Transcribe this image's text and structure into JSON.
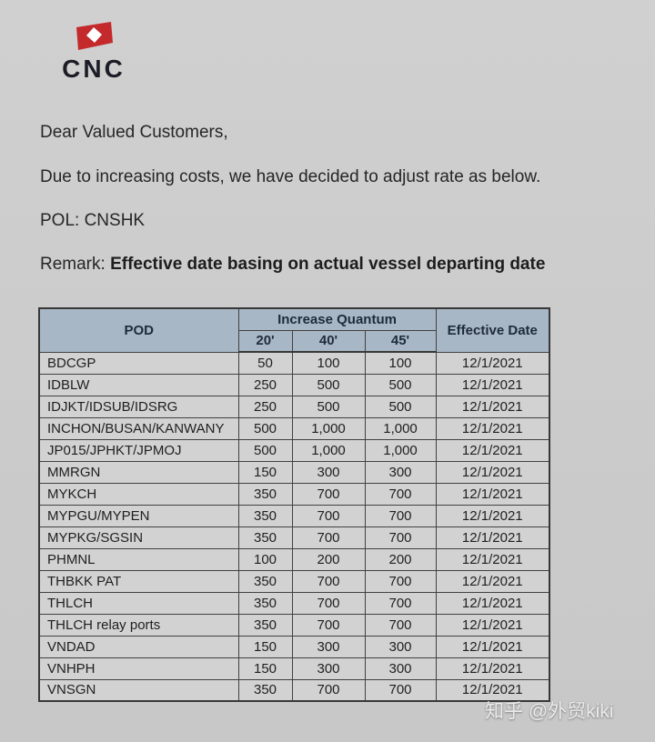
{
  "logo": {
    "text": "CNC",
    "flag_color": "#c4292c",
    "diamond_color": "#ffffff"
  },
  "letter": {
    "greeting": "Dear Valued Customers,",
    "body": "Due to increasing costs, we have decided to adjust rate as below.",
    "pol": "POL: CNSHK",
    "remark_label": "Remark: ",
    "remark_bold": "Effective date basing on actual vessel departing date"
  },
  "table": {
    "headers": {
      "pod": "POD",
      "increase_quantum": "Increase Quantum",
      "sizes": [
        "20'",
        "40'",
        "45'"
      ],
      "effective_date": "Effective Date"
    },
    "rows": [
      {
        "pod": "BDCGP",
        "q20": "50",
        "q40": "100",
        "q45": "100",
        "date": "12/1/2021"
      },
      {
        "pod": "IDBLW",
        "q20": "250",
        "q40": "500",
        "q45": "500",
        "date": "12/1/2021"
      },
      {
        "pod": "IDJKT/IDSUB/IDSRG",
        "q20": "250",
        "q40": "500",
        "q45": "500",
        "date": "12/1/2021"
      },
      {
        "pod": "INCHON/BUSAN/KANWANY",
        "q20": "500",
        "q40": "1,000",
        "q45": "1,000",
        "date": "12/1/2021"
      },
      {
        "pod": "JP015/JPHKT/JPMOJ",
        "q20": "500",
        "q40": "1,000",
        "q45": "1,000",
        "date": "12/1/2021"
      },
      {
        "pod": "MMRGN",
        "q20": "150",
        "q40": "300",
        "q45": "300",
        "date": "12/1/2021"
      },
      {
        "pod": "MYKCH",
        "q20": "350",
        "q40": "700",
        "q45": "700",
        "date": "12/1/2021"
      },
      {
        "pod": "MYPGU/MYPEN",
        "q20": "350",
        "q40": "700",
        "q45": "700",
        "date": "12/1/2021"
      },
      {
        "pod": "MYPKG/SGSIN",
        "q20": "350",
        "q40": "700",
        "q45": "700",
        "date": "12/1/2021"
      },
      {
        "pod": "PHMNL",
        "q20": "100",
        "q40": "200",
        "q45": "200",
        "date": "12/1/2021"
      },
      {
        "pod": "THBKK PAT",
        "q20": "350",
        "q40": "700",
        "q45": "700",
        "date": "12/1/2021"
      },
      {
        "pod": "THLCH",
        "q20": "350",
        "q40": "700",
        "q45": "700",
        "date": "12/1/2021"
      },
      {
        "pod": "THLCH relay ports",
        "q20": "350",
        "q40": "700",
        "q45": "700",
        "date": "12/1/2021"
      },
      {
        "pod": "VNDAD",
        "q20": "150",
        "q40": "300",
        "q45": "300",
        "date": "12/1/2021"
      },
      {
        "pod": "VNHPH",
        "q20": "150",
        "q40": "300",
        "q45": "300",
        "date": "12/1/2021"
      },
      {
        "pod": "VNSGN",
        "q20": "350",
        "q40": "700",
        "q45": "700",
        "date": "12/1/2021"
      }
    ]
  },
  "watermark": {
    "text": "知乎 @外贸kiki"
  },
  "colors": {
    "page_bg": "#cccccc",
    "header_bg": "#a8b7c5",
    "row_bg": "#d2d2d2",
    "border": "#414141",
    "logo_red": "#c4292c"
  }
}
